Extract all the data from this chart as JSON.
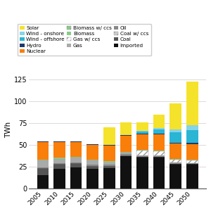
{
  "years": [
    "2005",
    "2010",
    "2015",
    "2020",
    "2025",
    "2030",
    "2035",
    "2040",
    "2045",
    "2050"
  ],
  "series": {
    "Imported": [
      15,
      22,
      24,
      22,
      23,
      37,
      36,
      36,
      28,
      28
    ],
    "Coal": [
      8,
      6,
      5,
      4,
      3,
      1,
      0,
      0,
      0,
      0
    ],
    "Coal w/ ccs": [
      0,
      0,
      0,
      0,
      0,
      0,
      0,
      0,
      0,
      0
    ],
    "Oil": [
      1,
      1,
      1,
      1,
      1,
      1,
      1,
      1,
      1,
      0.5
    ],
    "Gas": [
      8,
      5,
      5,
      5,
      3,
      2,
      1,
      0.5,
      0.5,
      0.5
    ],
    "Gas w/ ccs": [
      0,
      0,
      0,
      0,
      0,
      0,
      5,
      5,
      3,
      3
    ],
    "Biomass": [
      1,
      1,
      1,
      1,
      1,
      1,
      1,
      1,
      1,
      1
    ],
    "Biomass w/ ccs": [
      0,
      0,
      0,
      0,
      0,
      0,
      0,
      0,
      0,
      0
    ],
    "Nuclear": [
      20,
      18,
      17,
      17,
      18,
      18,
      18,
      18,
      18,
      18
    ],
    "Hydro": [
      1,
      1,
      1,
      1,
      1,
      1,
      1,
      1,
      1,
      1
    ],
    "Wind - offshore": [
      0,
      0,
      0,
      0,
      0,
      0,
      2,
      5,
      12,
      15
    ],
    "Wind - onshore": [
      0,
      0,
      0,
      0,
      0,
      0,
      1,
      2,
      3,
      5
    ],
    "Solar": [
      0,
      0,
      0,
      0,
      20,
      15,
      10,
      15,
      30,
      50
    ]
  },
  "colors": {
    "Imported": "#111111",
    "Coal": "#555555",
    "Coal w/ ccs": "#999999",
    "Oil": "#888888",
    "Gas": "#aaaaaa",
    "Gas w/ ccs": "#cccccc",
    "Biomass": "#88cc88",
    "Biomass w/ ccs": "#55aa55",
    "Nuclear": "#f97e0a",
    "Hydro": "#1a3a6b",
    "Wind - offshore": "#2ab5d5",
    "Wind - onshore": "#85d4e8",
    "Solar": "#f5e22a"
  },
  "ylabel": "TWh",
  "ylim": [
    0,
    135
  ],
  "yticks": [
    0,
    25,
    50,
    75,
    100,
    125
  ],
  "figsize": [
    3.0,
    3.0
  ],
  "dpi": 100,
  "bar_width": 0.7,
  "legend_order": [
    "Solar",
    "Wind - onshore",
    "Wind - offshore",
    "Hydro",
    "Nuclear",
    "Biomass w/ ccs",
    "Biomass",
    "Gas w/ ccs",
    "Gas",
    "Oil",
    "Coal w/ ccs",
    "Coal",
    "Imported"
  ],
  "legend_ncol": 3
}
